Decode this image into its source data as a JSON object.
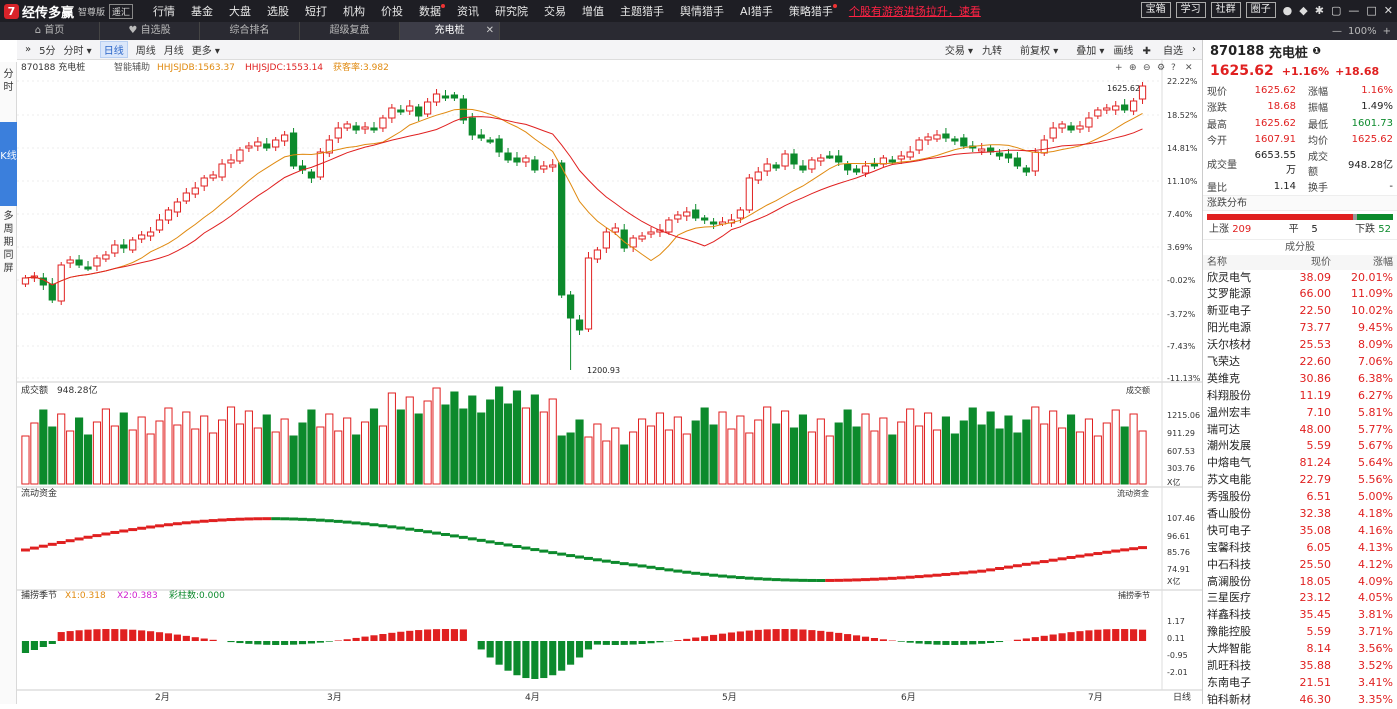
{
  "app": {
    "logo_mark": "7",
    "name": "经传多赢",
    "edition": "智尊版",
    "tag": "遥汇"
  },
  "top_menu": [
    {
      "label": "行情",
      "dot": false
    },
    {
      "label": "基金",
      "dot": false
    },
    {
      "label": "大盘",
      "dot": false
    },
    {
      "label": "选股",
      "dot": false
    },
    {
      "label": "短打",
      "dot": false
    },
    {
      "label": "机构",
      "dot": false
    },
    {
      "label": "价投",
      "dot": false
    },
    {
      "label": "数据",
      "dot": true
    },
    {
      "label": "资讯",
      "dot": false
    },
    {
      "label": "研究院",
      "dot": false
    },
    {
      "label": "交易",
      "dot": false
    },
    {
      "label": "增值",
      "dot": false
    },
    {
      "label": "主题猎手",
      "dot": false
    },
    {
      "label": "舆情猎手",
      "dot": false
    },
    {
      "label": "AI猎手",
      "dot": false
    },
    {
      "label": "策略猎手",
      "dot": true
    }
  ],
  "news_ticker": "个股有游资进场拉升，速看",
  "top_right": {
    "buttons": [
      "宝箱",
      "学习",
      "社群",
      "圈子"
    ]
  },
  "tabs": [
    {
      "label": "首页",
      "icon": "home"
    },
    {
      "label": "自选股",
      "icon": "heart"
    },
    {
      "label": "综合排名",
      "icon": ""
    },
    {
      "label": "超级复盘",
      "icon": ""
    },
    {
      "label": "充电桩",
      "icon": "",
      "active": true
    }
  ],
  "zoom": "100%",
  "left_nav": [
    {
      "label": "分时"
    },
    {
      "label": "K线",
      "active": true
    },
    {
      "label": "多周期同屏"
    }
  ],
  "toolbar": {
    "items": [
      "5分",
      "分时",
      "日线",
      "周线",
      "月线",
      "更多"
    ],
    "selected": "日线",
    "right": [
      "交易",
      "九转",
      "前复权",
      "叠加",
      "画线",
      "自选"
    ]
  },
  "main_chart": {
    "title": "870188 充电桩",
    "assist": "智能辅助",
    "ind1": "HHJSJDB:1563.37",
    "ind2": "HHJSJDC:1553.14",
    "ind3": "获客率:3.982",
    "last_price_label": "1625.62",
    "low_label": "1200.93",
    "y_labels": [
      "22.22%",
      "18.52%",
      "14.81%",
      "11.10%",
      "7.40%",
      "3.69%",
      "-0.02%",
      "-3.72%",
      "-7.43%",
      "-11.13%"
    ]
  },
  "volume_panel": {
    "title": "成交额",
    "value": "948.28亿",
    "right_title": "成交额",
    "y_labels": [
      "1215.06",
      "911.29",
      "607.53",
      "303.76"
    ],
    "unit": "X亿"
  },
  "flow_panel": {
    "title": "流动资金",
    "right_title": "流动资金",
    "y_labels": [
      "107.46",
      "96.61",
      "85.76",
      "74.91"
    ],
    "unit": "X亿"
  },
  "catch_panel": {
    "title": "捕捞季节",
    "x1": "X1:0.318",
    "x2": "X2:0.383",
    "bar": "彩柱数:0.000",
    "right_title": "捕捞季节",
    "y_labels": [
      "1.17",
      "0.11",
      "-0.95",
      "-2.01"
    ]
  },
  "x_axis": {
    "labels": [
      "2月",
      "3月",
      "4月",
      "5月",
      "6月",
      "7月"
    ],
    "period": "日线"
  },
  "right_panel": {
    "code": "870188",
    "name": "充电桩",
    "price": "1625.62",
    "change_pct": "+1.16%",
    "change": "+18.68",
    "quote": [
      [
        "现价",
        "1625.62",
        "red",
        "涨幅",
        "1.16%",
        "red"
      ],
      [
        "涨跌",
        "18.68",
        "red",
        "振幅",
        "1.49%",
        "black"
      ],
      [
        "最高",
        "1625.62",
        "red",
        "最低",
        "1601.73",
        "green"
      ],
      [
        "今开",
        "1607.91",
        "red",
        "均价",
        "1625.62",
        "red"
      ],
      [
        "成交量",
        "6653.55万",
        "black",
        "成交额",
        "948.28亿",
        "black"
      ],
      [
        "量比",
        "1.14",
        "black",
        "换手",
        "-",
        "black"
      ]
    ],
    "dist_title": "涨跌分布",
    "up_label": "上涨",
    "up": "209",
    "flat_label": "平",
    "flat": "5",
    "down_label": "下跌",
    "down": "52",
    "cfg_title": "成分股",
    "cfg_head": [
      "名称",
      "现价",
      "涨幅"
    ],
    "stocks": [
      [
        "欣灵电气",
        "38.09",
        "20.01%"
      ],
      [
        "艾罗能源",
        "66.00",
        "11.09%"
      ],
      [
        "新亚电子",
        "22.50",
        "10.02%"
      ],
      [
        "阳光电源",
        "73.77",
        "9.45%"
      ],
      [
        "沃尔核材",
        "25.53",
        "8.09%"
      ],
      [
        "飞荣达",
        "22.60",
        "7.06%"
      ],
      [
        "英维克",
        "30.86",
        "6.38%"
      ],
      [
        "科翔股份",
        "11.19",
        "6.27%"
      ],
      [
        "温州宏丰",
        "7.10",
        "5.81%"
      ],
      [
        "瑞可达",
        "48.00",
        "5.77%"
      ],
      [
        "潮州发展",
        "5.59",
        "5.67%"
      ],
      [
        "中熔电气",
        "81.24",
        "5.64%"
      ],
      [
        "苏文电能",
        "22.79",
        "5.56%"
      ],
      [
        "秀强股份",
        "6.51",
        "5.00%"
      ],
      [
        "香山股份",
        "32.38",
        "4.18%"
      ],
      [
        "快可电子",
        "35.08",
        "4.16%"
      ],
      [
        "宝馨科技",
        "6.05",
        "4.13%"
      ],
      [
        "中石科技",
        "25.50",
        "4.12%"
      ],
      [
        "高澜股份",
        "18.05",
        "4.09%"
      ],
      [
        "三星医疗",
        "23.12",
        "4.05%"
      ],
      [
        "祥鑫科技",
        "35.45",
        "3.81%"
      ],
      [
        "豫能控股",
        "5.59",
        "3.71%"
      ],
      [
        "大烨智能",
        "8.14",
        "3.56%"
      ],
      [
        "凯旺科技",
        "35.88",
        "3.52%"
      ],
      [
        "东南电子",
        "21.51",
        "3.41%"
      ],
      [
        "铂科新材",
        "46.30",
        "3.35%"
      ]
    ]
  },
  "colors": {
    "up": "#e02020",
    "down": "#0c8a2c",
    "accent": "#3b7fdc"
  }
}
